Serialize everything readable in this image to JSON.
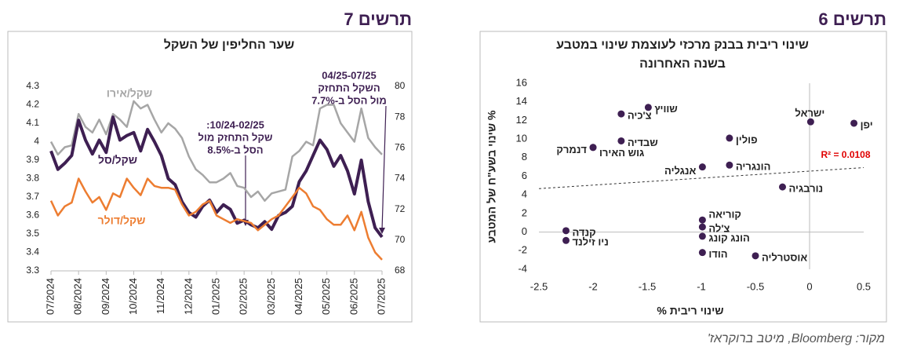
{
  "source": "מקור: Bloomberg, מיטב ברוקראז'",
  "chart_data": [
    {
      "type": "line",
      "label": "תרשים 7",
      "title": "שער החליפין של השקל",
      "categories": [
        "07/2024",
        null,
        null,
        null,
        "08/2024",
        null,
        null,
        null,
        "09/2024",
        null,
        null,
        null,
        "10/2024",
        null,
        null,
        null,
        "11/2024",
        null,
        null,
        null,
        "12/2024",
        null,
        null,
        null,
        "01/2025",
        null,
        null,
        null,
        "02/2025",
        null,
        null,
        null,
        "03/2025",
        null,
        null,
        null,
        "04/2025",
        null,
        null,
        null,
        "05/2025",
        null,
        null,
        null,
        "06/2025",
        null,
        null,
        null,
        "07/2025"
      ],
      "series": [
        {
          "name": "שקל/אירו",
          "color": "#a6a6a6",
          "values": [
            4.0,
            3.93,
            3.97,
            3.98,
            4.15,
            4.08,
            4.05,
            4.12,
            4.04,
            4.15,
            4.12,
            4.08,
            4.22,
            4.18,
            4.2,
            4.12,
            4.05,
            4.1,
            4.07,
            4.02,
            3.92,
            3.85,
            3.82,
            3.78,
            3.78,
            3.8,
            3.83,
            3.76,
            3.75,
            3.7,
            3.73,
            3.68,
            3.72,
            3.73,
            3.74,
            3.92,
            3.95,
            4.0,
            3.98,
            4.18,
            4.2,
            4.2,
            4.1,
            4.05,
            4.0,
            4.18,
            4.02,
            3.97,
            3.93
          ]
        },
        {
          "name": "שקל/סל",
          "color": "#3e1f52",
          "axis": "y2",
          "values": [
            75.8,
            74.6,
            75.0,
            75.5,
            77.8,
            76.5,
            75.6,
            76.5,
            75.7,
            78.0,
            76.5,
            76.8,
            77.0,
            75.8,
            77.2,
            76.4,
            75.5,
            74.0,
            73.6,
            72.5,
            71.8,
            71.5,
            72.2,
            72.6,
            71.8,
            72.3,
            72.0,
            71.1,
            71.3,
            71.0,
            70.8,
            71.2,
            70.7,
            71.6,
            71.8,
            72.2,
            73.8,
            74.5,
            75.5,
            76.5,
            75.9,
            74.8,
            75.5,
            74.5,
            73.0,
            75.2,
            72.5,
            70.8,
            70.2
          ]
        },
        {
          "name": "שקל/דולר",
          "color": "#ed7d31",
          "values": [
            3.68,
            3.6,
            3.65,
            3.67,
            3.8,
            3.73,
            3.67,
            3.7,
            3.63,
            3.72,
            3.7,
            3.8,
            3.75,
            3.71,
            3.8,
            3.76,
            3.75,
            3.75,
            3.74,
            3.66,
            3.6,
            3.62,
            3.66,
            3.68,
            3.6,
            3.58,
            3.56,
            3.58,
            3.57,
            3.56,
            3.52,
            3.55,
            3.58,
            3.6,
            3.65,
            3.7,
            3.75,
            3.72,
            3.65,
            3.63,
            3.58,
            3.55,
            3.55,
            3.6,
            3.52,
            3.62,
            3.48,
            3.4,
            3.36
          ]
        }
      ],
      "ylim": [
        3.3,
        4.3
      ],
      "yticks": [
        3.3,
        3.4,
        3.5,
        3.6,
        3.7,
        3.8,
        3.9,
        4,
        4.1,
        4.2,
        4.3
      ],
      "y2lim": [
        68,
        80
      ],
      "y2ticks": [
        68,
        70,
        72,
        74,
        76,
        78,
        80
      ],
      "annotations": [
        {
          "lines": [
            "10/24-02/25:",
            "שקל התחזק מול",
            "הסל ב-8.5%"
          ]
        },
        {
          "lines": [
            "04/25-07/25",
            "השקל התחזק",
            "מול הסל ב-7.7%"
          ]
        }
      ]
    },
    {
      "type": "scatter",
      "label": "תרשים 6",
      "title": [
        "שינוי ריבית בבנק מרכזי לעוצמת שינוי במטבע",
        "בשנה האחרונה"
      ],
      "x_label": "שינוי ריבית %",
      "y_label": "% שינוי בשע\"ח של המטבע",
      "color": "#3e1f52",
      "points": [
        {
          "name": "יפן",
          "x": 0.41,
          "y": 11.7
        },
        {
          "name": "ישראל",
          "x": 0.01,
          "y": 11.85
        },
        {
          "name": "שוויץ",
          "x": -1.49,
          "y": 13.4
        },
        {
          "name": "צ'כיה",
          "x": -1.74,
          "y": 12.7
        },
        {
          "name": "שבדיה",
          "x": -1.74,
          "y": 9.8
        },
        {
          "name": "פולין",
          "x": -0.74,
          "y": 10.1
        },
        {
          "name": "גוש האירו",
          "x": -2.0,
          "y": 9.1
        },
        {
          "name": "דנמרק",
          "x": -2.0,
          "y": 9.1
        },
        {
          "name": "הונגריה",
          "x": -0.74,
          "y": 7.2
        },
        {
          "name": "אנגליה",
          "x": -0.99,
          "y": 7.0
        },
        {
          "name": "נורבגיה",
          "x": -0.25,
          "y": 4.85
        },
        {
          "name": "קוריאה",
          "x": -0.99,
          "y": 1.3
        },
        {
          "name": "צ'לה",
          "x": -0.99,
          "y": 0.55
        },
        {
          "name": "הונג קונג",
          "x": -0.99,
          "y": -0.45
        },
        {
          "name": "הודו",
          "x": -0.99,
          "y": -2.2
        },
        {
          "name": "אוסטרליה",
          "x": -0.5,
          "y": -2.55
        },
        {
          "name": "קנדה",
          "x": -2.25,
          "y": 0.15
        },
        {
          "name": "ניו זילנד",
          "x": -2.25,
          "y": -0.9
        }
      ],
      "trendline_label": "R² = 0.0108",
      "xlim": [
        -2.5,
        0.5
      ],
      "xticks": [
        -2.5,
        -2,
        -1.5,
        -1,
        -0.5,
        0,
        0.5
      ],
      "ylim": [
        -4,
        16
      ],
      "yticks": [
        -4,
        -2,
        0,
        2,
        4,
        6,
        8,
        10,
        12,
        14,
        16
      ]
    }
  ]
}
